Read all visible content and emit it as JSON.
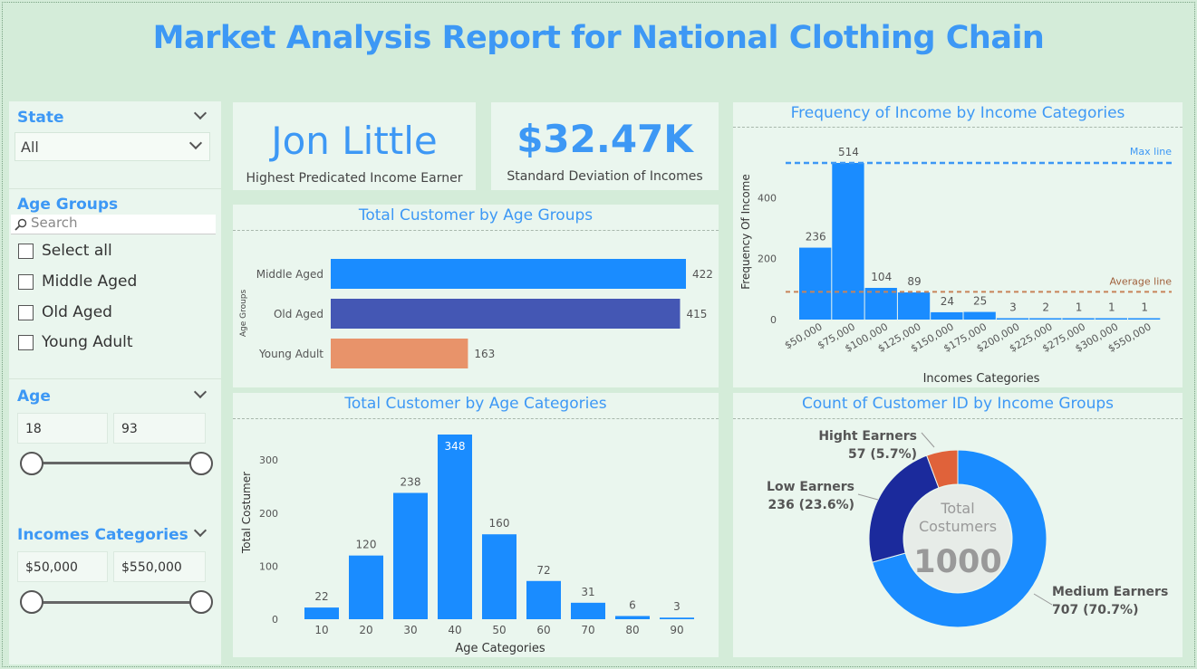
{
  "report": {
    "title": "Market Analysis Report for National Clothing Chain"
  },
  "filters": {
    "state": {
      "title": "State",
      "value": "All"
    },
    "age_groups": {
      "title": "Age Groups",
      "search_placeholder": "Search",
      "options": [
        "Select all",
        "Middle Aged",
        "Old Aged",
        "Young Adult"
      ]
    },
    "age": {
      "title": "Age",
      "min": "18",
      "max": "93"
    },
    "incomes": {
      "title": "Incomes Categories",
      "min": "$50,000",
      "max": "$550,000"
    }
  },
  "kpis": {
    "top_earner": {
      "value": "Jon Little",
      "label": "Highest Predicated Income Earner"
    },
    "std_dev": {
      "value": "$32.47K",
      "label": "Standard Deviation of Incomes"
    }
  },
  "colors": {
    "accent": "#3d98f5",
    "bar_blue": "#1a8cff",
    "bar_indigo": "#4457b4",
    "bar_orange": "#e8936a",
    "donut_blue": "#1a8cff",
    "donut_navy": "#1b2a9c",
    "donut_orange": "#e0623a"
  },
  "chart_data": [
    {
      "type": "bar",
      "orientation": "horizontal",
      "title": "Total Customer by Age Groups",
      "ylabel": "Age Groups",
      "categories": [
        "Middle Aged",
        "Old Aged",
        "Young Adult"
      ],
      "values": [
        422,
        415,
        163
      ]
    },
    {
      "type": "bar",
      "title": "Total Customer by Age Categories",
      "xlabel": "Age Categories",
      "ylabel": "Total Costumer",
      "categories": [
        "10",
        "20",
        "30",
        "40",
        "50",
        "60",
        "70",
        "80",
        "90"
      ],
      "values": [
        22,
        120,
        238,
        348,
        160,
        72,
        31,
        6,
        3
      ],
      "yticks": [
        "0",
        "100",
        "200",
        "300"
      ],
      "ylim": [
        0,
        350
      ],
      "grid": false
    },
    {
      "type": "bar",
      "title": "Frequency of Income by Income Categories",
      "xlabel": "Incomes Categories",
      "ylabel": "Frequency Of Income",
      "categories": [
        "$50,000",
        "$75,000",
        "$100,000",
        "$125,000",
        "$150,000",
        "$175,000",
        "$200,000",
        "$225,000",
        "$275,000",
        "$300,000",
        "$550,000"
      ],
      "values": [
        236,
        514,
        104,
        89,
        24,
        25,
        3,
        2,
        1,
        1,
        1
      ],
      "yticks": [
        "0",
        "200",
        "400"
      ],
      "ylim": [
        0,
        530
      ],
      "max_line_label": "Max line",
      "average_line_label": "Average line",
      "max_line_value": 514,
      "average_line_value": 91
    },
    {
      "type": "pie",
      "donut": true,
      "title": "Count of Customer ID by Income Groups",
      "center_label": "Total Costumers",
      "center_value": "1000",
      "slices": [
        {
          "name": "Medium Earners",
          "value": 707,
          "label": "707 (70.7%)"
        },
        {
          "name": "Low Earners",
          "value": 236,
          "label": "236 (23.6%)"
        },
        {
          "name": "Hight Earners",
          "value": 57,
          "label": "57 (5.7%)"
        }
      ]
    }
  ]
}
